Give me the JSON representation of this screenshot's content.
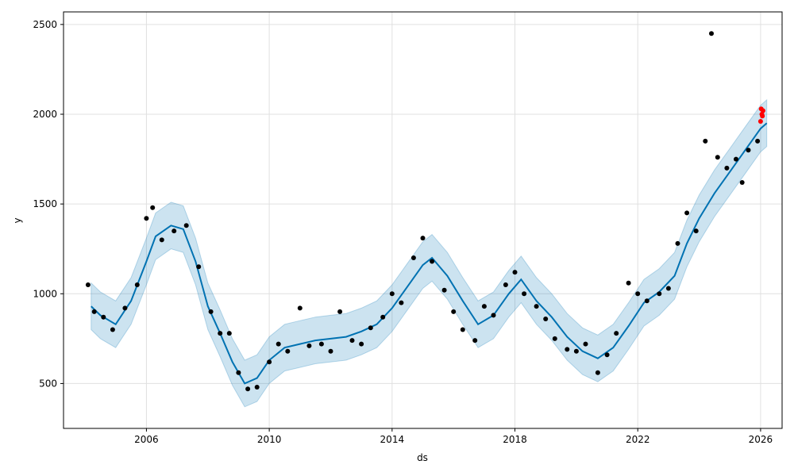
{
  "chart_data": {
    "type": "line",
    "xlabel": "ds",
    "ylabel": "y",
    "xlim": [
      2003.3,
      2026.7
    ],
    "ylim": [
      250,
      2570
    ],
    "x_ticks": [
      {
        "value": 2006,
        "label": "2006"
      },
      {
        "value": 2010,
        "label": "2010"
      },
      {
        "value": 2014,
        "label": "2014"
      },
      {
        "value": 2018,
        "label": "2018"
      },
      {
        "value": 2022,
        "label": "2022"
      },
      {
        "value": 2026,
        "label": "2026"
      }
    ],
    "y_ticks": [
      {
        "value": 500,
        "label": "500"
      },
      {
        "value": 1000,
        "label": "1000"
      },
      {
        "value": 1500,
        "label": "1500"
      },
      {
        "value": 2000,
        "label": "2000"
      },
      {
        "value": 2500,
        "label": "2500"
      }
    ],
    "grid": true,
    "colors": {
      "forecast_line": "#0072B2",
      "uncertainty_band": "#0072B2",
      "observed_points": "#000000",
      "recent_points": "#ff0000",
      "grid": "#e0e0e0"
    },
    "series": [
      {
        "kind": "forecast",
        "x": [
          2004.2,
          2004.5,
          2005.0,
          2005.5,
          2006.0,
          2006.3,
          2006.8,
          2007.2,
          2007.6,
          2008.0,
          2008.4,
          2008.8,
          2009.2,
          2009.6,
          2010.0,
          2010.5,
          2011.0,
          2011.5,
          2012.0,
          2012.5,
          2013.0,
          2013.5,
          2014.0,
          2014.5,
          2015.0,
          2015.3,
          2015.8,
          2016.3,
          2016.8,
          2017.3,
          2017.8,
          2018.2,
          2018.7,
          2019.2,
          2019.7,
          2020.2,
          2020.7,
          2021.2,
          2021.7,
          2022.2,
          2022.7,
          2023.2,
          2023.6,
          2024.0,
          2024.5,
          2025.0,
          2025.5,
          2026.0,
          2026.2
        ],
        "y": [
          930,
          880,
          830,
          960,
          1180,
          1320,
          1380,
          1360,
          1180,
          930,
          780,
          620,
          500,
          530,
          630,
          700,
          720,
          740,
          750,
          760,
          790,
          830,
          920,
          1040,
          1160,
          1200,
          1100,
          960,
          830,
          880,
          1000,
          1080,
          960,
          870,
          760,
          680,
          640,
          700,
          820,
          950,
          1010,
          1100,
          1280,
          1420,
          1560,
          1680,
          1800,
          1920,
          1950
        ]
      },
      {
        "kind": "uncertainty",
        "x": [
          2004.2,
          2004.5,
          2005.0,
          2005.5,
          2006.0,
          2006.3,
          2006.8,
          2007.2,
          2007.6,
          2008.0,
          2008.4,
          2008.8,
          2009.2,
          2009.6,
          2010.0,
          2010.5,
          2011.0,
          2011.5,
          2012.0,
          2012.5,
          2013.0,
          2013.5,
          2014.0,
          2014.5,
          2015.0,
          2015.3,
          2015.8,
          2016.3,
          2016.8,
          2017.3,
          2017.8,
          2018.2,
          2018.7,
          2019.2,
          2019.7,
          2020.2,
          2020.7,
          2021.2,
          2021.7,
          2022.2,
          2022.7,
          2023.2,
          2023.6,
          2024.0,
          2024.5,
          2025.0,
          2025.5,
          2026.0,
          2026.2
        ],
        "y_lower": [
          800,
          750,
          700,
          830,
          1050,
          1190,
          1250,
          1230,
          1050,
          800,
          650,
          490,
          370,
          400,
          500,
          570,
          590,
          610,
          620,
          630,
          660,
          700,
          790,
          910,
          1030,
          1070,
          970,
          830,
          700,
          750,
          870,
          950,
          830,
          740,
          630,
          550,
          510,
          570,
          690,
          820,
          880,
          970,
          1150,
          1290,
          1430,
          1550,
          1670,
          1790,
          1820
        ],
        "y_upper": [
          1060,
          1010,
          960,
          1090,
          1310,
          1450,
          1510,
          1490,
          1310,
          1060,
          910,
          750,
          630,
          660,
          760,
          830,
          850,
          870,
          880,
          890,
          920,
          960,
          1050,
          1170,
          1290,
          1330,
          1230,
          1090,
          960,
          1010,
          1130,
          1210,
          1090,
          1000,
          890,
          810,
          770,
          830,
          950,
          1080,
          1140,
          1230,
          1410,
          1550,
          1690,
          1810,
          1930,
          2050,
          2080
        ]
      },
      {
        "kind": "observed",
        "x": [
          2004.1,
          2004.3,
          2004.6,
          2004.9,
          2005.3,
          2005.7,
          2006.0,
          2006.2,
          2006.5,
          2006.9,
          2007.3,
          2007.7,
          2008.1,
          2008.4,
          2008.7,
          2009.0,
          2009.3,
          2009.6,
          2010.0,
          2010.3,
          2010.6,
          2011.0,
          2011.3,
          2011.7,
          2012.0,
          2012.3,
          2012.7,
          2013.0,
          2013.3,
          2013.7,
          2014.0,
          2014.3,
          2014.7,
          2015.0,
          2015.3,
          2015.7,
          2016.0,
          2016.3,
          2016.7,
          2017.0,
          2017.3,
          2017.7,
          2018.0,
          2018.3,
          2018.7,
          2019.0,
          2019.3,
          2019.7,
          2020.0,
          2020.3,
          2020.7,
          2021.0,
          2021.3,
          2021.7,
          2022.0,
          2022.3,
          2022.7,
          2023.0,
          2023.3,
          2023.6,
          2023.9,
          2024.2,
          2024.4,
          2024.6,
          2024.9,
          2025.2,
          2025.4,
          2025.6,
          2025.9
        ],
        "y": [
          1050,
          900,
          870,
          800,
          920,
          1050,
          1420,
          1480,
          1300,
          1350,
          1380,
          1150,
          900,
          780,
          780,
          560,
          470,
          480,
          620,
          720,
          680,
          920,
          710,
          720,
          680,
          900,
          740,
          720,
          810,
          870,
          1000,
          950,
          1200,
          1310,
          1180,
          1020,
          900,
          800,
          740,
          930,
          880,
          1050,
          1120,
          1000,
          930,
          860,
          750,
          690,
          680,
          720,
          560,
          660,
          780,
          1060,
          1000,
          960,
          1000,
          1030,
          1280,
          1450,
          1350,
          1850,
          2450,
          1760,
          1700,
          1750,
          1620,
          1800,
          1850
        ]
      },
      {
        "kind": "recent",
        "x": [
          2026.0,
          2026.02,
          2026.04,
          2026.06,
          2026.08
        ],
        "y": [
          1960,
          2030,
          2000,
          1990,
          2020
        ]
      }
    ]
  }
}
